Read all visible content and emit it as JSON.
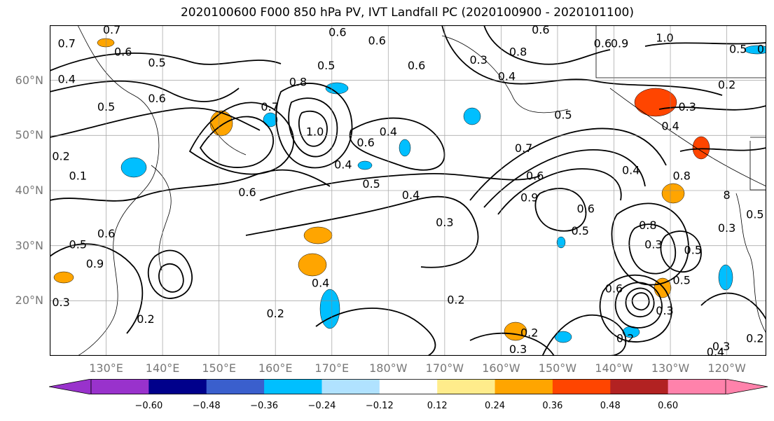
{
  "figure": {
    "title": "2020100600 F000 850 hPa PV, IVT Landfall PC (2020100900 - 2020101100)"
  },
  "map": {
    "projection": "PlateCarree",
    "lon_range": [
      120,
      247
    ],
    "lat_range": [
      10,
      70
    ],
    "lat_ticks": [
      {
        "value": 20,
        "label": "20°N"
      },
      {
        "value": 30,
        "label": "30°N"
      },
      {
        "value": 40,
        "label": "40°N"
      },
      {
        "value": 50,
        "label": "50°N"
      },
      {
        "value": 60,
        "label": "60°N"
      }
    ],
    "lon_ticks": [
      {
        "value": 130,
        "label": "130°E"
      },
      {
        "value": 140,
        "label": "140°E"
      },
      {
        "value": 150,
        "label": "150°E"
      },
      {
        "value": 160,
        "label": "160°E"
      },
      {
        "value": 170,
        "label": "170°E"
      },
      {
        "value": 180,
        "label": "180°W"
      },
      {
        "value": 190,
        "label": "170°W"
      },
      {
        "value": 200,
        "label": "160°W"
      },
      {
        "value": 210,
        "label": "150°W"
      },
      {
        "value": 220,
        "label": "140°W"
      },
      {
        "value": 230,
        "label": "130°W"
      },
      {
        "value": 240,
        "label": "120°W"
      }
    ],
    "gridlines": true,
    "contour_labels": [
      {
        "lon": 123,
        "lat": 66,
        "text": "0.7"
      },
      {
        "lon": 131,
        "lat": 68.5,
        "text": "0.7"
      },
      {
        "lon": 133,
        "lat": 64.5,
        "text": "0.6"
      },
      {
        "lon": 139,
        "lat": 62.5,
        "text": "0.5"
      },
      {
        "lon": 123,
        "lat": 59.5,
        "text": "0.4"
      },
      {
        "lon": 130,
        "lat": 54.5,
        "text": "0.5"
      },
      {
        "lon": 139,
        "lat": 56,
        "text": "0.6"
      },
      {
        "lon": 122,
        "lat": 45.5,
        "text": "0.2"
      },
      {
        "lon": 125,
        "lat": 42,
        "text": "0.1"
      },
      {
        "lon": 169,
        "lat": 62,
        "text": "0.5"
      },
      {
        "lon": 171,
        "lat": 68,
        "text": "0.6"
      },
      {
        "lon": 178,
        "lat": 66.5,
        "text": "0.6"
      },
      {
        "lon": 185,
        "lat": 62,
        "text": "0.6"
      },
      {
        "lon": 196,
        "lat": 63,
        "text": "0.3"
      },
      {
        "lon": 203,
        "lat": 64.5,
        "text": "0.8"
      },
      {
        "lon": 201,
        "lat": 60,
        "text": "0.4"
      },
      {
        "lon": 164,
        "lat": 59,
        "text": "0.8"
      },
      {
        "lon": 159,
        "lat": 54.5,
        "text": "0.7"
      },
      {
        "lon": 167,
        "lat": 50,
        "text": "1.0"
      },
      {
        "lon": 176,
        "lat": 48,
        "text": "0.6"
      },
      {
        "lon": 180,
        "lat": 50,
        "text": "0.4"
      },
      {
        "lon": 172,
        "lat": 44,
        "text": "0.4"
      },
      {
        "lon": 177,
        "lat": 40.5,
        "text": "0.5"
      },
      {
        "lon": 155,
        "lat": 39,
        "text": "0.6"
      },
      {
        "lon": 184,
        "lat": 38.5,
        "text": "0.4"
      },
      {
        "lon": 130,
        "lat": 31.5,
        "text": "0.6"
      },
      {
        "lon": 125,
        "lat": 29.5,
        "text": "0.5"
      },
      {
        "lon": 128,
        "lat": 26,
        "text": "0.9"
      },
      {
        "lon": 122,
        "lat": 19,
        "text": "0.3"
      },
      {
        "lon": 137,
        "lat": 16,
        "text": "0.2"
      },
      {
        "lon": 160,
        "lat": 17,
        "text": "0.2"
      },
      {
        "lon": 168,
        "lat": 22.5,
        "text": "0.4"
      },
      {
        "lon": 192,
        "lat": 19.5,
        "text": "0.2"
      },
      {
        "lon": 190,
        "lat": 33.5,
        "text": "0.3"
      },
      {
        "lon": 206,
        "lat": 42,
        "text": "0.6"
      },
      {
        "lon": 204,
        "lat": 47,
        "text": "0.7"
      },
      {
        "lon": 211,
        "lat": 53,
        "text": "0.5"
      },
      {
        "lon": 223,
        "lat": 43,
        "text": "0.4"
      },
      {
        "lon": 215,
        "lat": 36,
        "text": "0.6"
      },
      {
        "lon": 226,
        "lat": 33,
        "text": "0.8"
      },
      {
        "lon": 214,
        "lat": 32,
        "text": "0.5"
      },
      {
        "lon": 227,
        "lat": 29.5,
        "text": "0.3"
      },
      {
        "lon": 234,
        "lat": 28.5,
        "text": "0.5"
      },
      {
        "lon": 232,
        "lat": 42,
        "text": "0.8"
      },
      {
        "lon": 240,
        "lat": 32.5,
        "text": "0.3"
      },
      {
        "lon": 222,
        "lat": 12.5,
        "text": "0.2"
      },
      {
        "lon": 205,
        "lat": 13.5,
        "text": "0.2"
      },
      {
        "lon": 203,
        "lat": 10.5,
        "text": "0.3"
      },
      {
        "lon": 229,
        "lat": 17.5,
        "text": "0.3"
      },
      {
        "lon": 239,
        "lat": 11,
        "text": "0.3"
      },
      {
        "lon": 238,
        "lat": 10,
        "text": "0.4"
      },
      {
        "lon": 245,
        "lat": 12.5,
        "text": "0.2"
      },
      {
        "lon": 229,
        "lat": 67,
        "text": "1.0"
      },
      {
        "lon": 242,
        "lat": 65,
        "text": "0.5"
      },
      {
        "lon": 240,
        "lat": 58.5,
        "text": "0.2"
      },
      {
        "lon": 233,
        "lat": 54.5,
        "text": "0.3"
      },
      {
        "lon": 218,
        "lat": 66,
        "text": "0.6"
      },
      {
        "lon": 207,
        "lat": 68.5,
        "text": "0.6"
      },
      {
        "lon": 221,
        "lat": 66,
        "text": "0.9"
      },
      {
        "lon": 230,
        "lat": 51,
        "text": "0.4"
      },
      {
        "lon": 205,
        "lat": 38,
        "text": "0.9"
      },
      {
        "lon": 220,
        "lat": 21.5,
        "text": "0.6"
      },
      {
        "lon": 232,
        "lat": 23,
        "text": "0.5"
      },
      {
        "lon": 245,
        "lat": 35,
        "text": "0.5"
      },
      {
        "lon": 246,
        "lat": 65,
        "text": "0"
      },
      {
        "lon": 240,
        "lat": 38.5,
        "text": "8"
      }
    ]
  },
  "colorbar": {
    "levels": [
      -0.72,
      -0.6,
      -0.48,
      -0.36,
      -0.24,
      -0.12,
      0.12,
      0.24,
      0.36,
      0.48,
      0.6,
      0.72
    ],
    "colors": [
      "#9932cc",
      "#00008b",
      "#3a5fcd",
      "#00bfff",
      "#b0e2ff",
      "#ffffff",
      "#ffec8b",
      "#ffa500",
      "#ff4500",
      "#b22222",
      "#ff82ab"
    ],
    "under_color": "#9932cc",
    "over_color": "#ff82ab",
    "tick_labels": [
      {
        "value": -0.6,
        "label": "−0.60"
      },
      {
        "value": -0.48,
        "label": "−0.48"
      },
      {
        "value": -0.36,
        "label": "−0.36"
      },
      {
        "value": -0.24,
        "label": "−0.24"
      },
      {
        "value": -0.12,
        "label": "−0.12"
      },
      {
        "value": 0.12,
        "label": "0.12"
      },
      {
        "value": 0.24,
        "label": "0.24"
      },
      {
        "value": 0.36,
        "label": "0.36"
      },
      {
        "value": 0.48,
        "label": "0.48"
      },
      {
        "value": 0.6,
        "label": "0.60"
      }
    ]
  }
}
